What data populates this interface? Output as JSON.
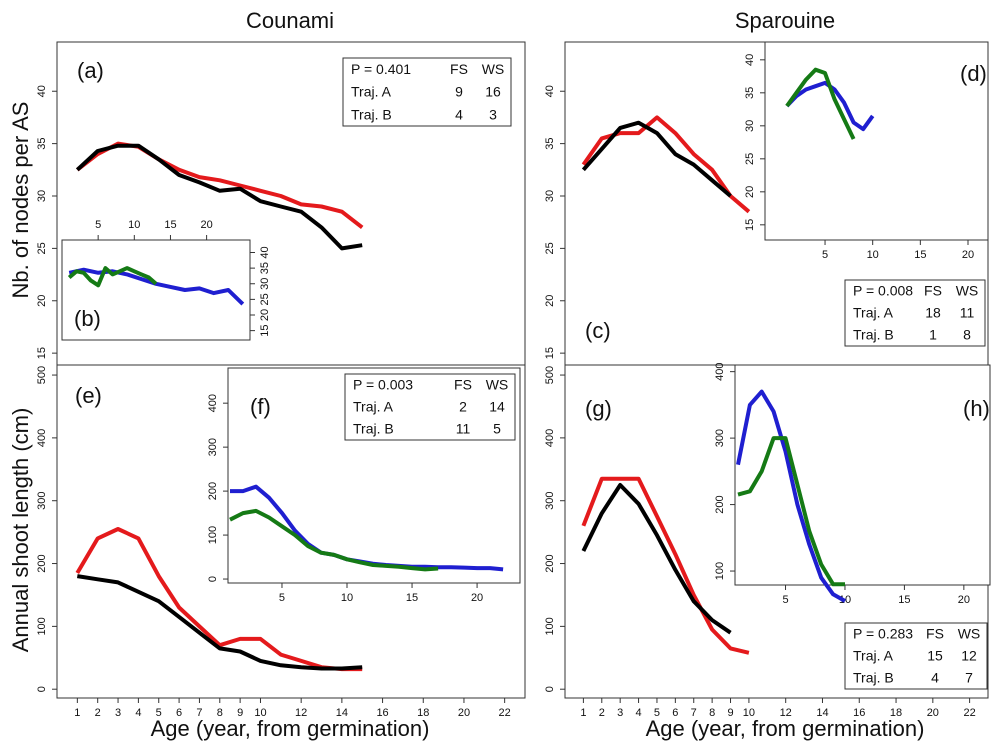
{
  "figure": {
    "columns": [
      "Counami",
      "Sparouine"
    ],
    "y_labels": [
      "Nb. of nodes per AS",
      "Annual shoot length (cm)"
    ],
    "x_label": "Age (year, from germination)"
  },
  "chart_data": [
    {
      "type": "line",
      "label": "(a)",
      "xlim": [
        0,
        23
      ],
      "ylim": [
        13.2,
        44.7
      ],
      "xticks": [
        1,
        2,
        3,
        4,
        5,
        6,
        7,
        8,
        9,
        10,
        12,
        14,
        16,
        18,
        20,
        22
      ],
      "yticks": [
        15,
        20,
        25,
        30,
        35,
        40
      ],
      "series": [
        {
          "color": "#e41a1c",
          "x": [
            1,
            2,
            3,
            4,
            5,
            6,
            7,
            8,
            9,
            10,
            11,
            12,
            13,
            14,
            15
          ],
          "values": [
            32.5,
            34,
            35,
            34.7,
            33.5,
            32.5,
            31.8,
            31.5,
            31,
            30.5,
            30,
            29.2,
            29,
            28.5,
            27
          ]
        },
        {
          "color": "#000000",
          "x": [
            1,
            2,
            3,
            4,
            5,
            6,
            7,
            8,
            9,
            10,
            11,
            12,
            13,
            14,
            15
          ],
          "values": [
            32.5,
            34.3,
            34.8,
            34.8,
            33.5,
            32,
            31.3,
            30.5,
            30.7,
            29.5,
            29,
            28.5,
            27,
            25,
            25.3
          ]
        }
      ],
      "table": {
        "p": "P = 0.401",
        "columns": [
          "FS",
          "WS"
        ],
        "rows": [
          {
            "name": "Traj. A",
            "counts": [
              9,
              16
            ]
          },
          {
            "name": "Traj. B",
            "counts": [
              4,
              3
            ]
          }
        ]
      }
    },
    {
      "type": "line",
      "label": "(b)",
      "xlim": [
        0,
        26
      ],
      "ylim": [
        12,
        44
      ],
      "xticks": [
        5,
        10,
        15,
        20
      ],
      "yticks": [
        15,
        20,
        25,
        30,
        35,
        40
      ],
      "x_axis": "top",
      "y_axis": "right",
      "series": [
        {
          "color": "#1f1fd0",
          "x": [
            1,
            3,
            5,
            7,
            9,
            11,
            13,
            15,
            17,
            19,
            21,
            23,
            25
          ],
          "values": [
            33.5,
            34.5,
            33.5,
            34,
            33,
            31.5,
            30,
            29,
            28,
            28.5,
            27,
            28,
            23.5
          ]
        },
        {
          "color": "#157a15",
          "x": [
            1,
            2,
            3,
            4,
            5,
            6,
            7,
            8,
            9,
            10,
            11,
            12,
            13
          ],
          "values": [
            32,
            34,
            33.5,
            31,
            29.5,
            35,
            33,
            34,
            35,
            34,
            33,
            32,
            30
          ]
        }
      ]
    },
    {
      "type": "line",
      "label": "(c)",
      "xlim": [
        0,
        23
      ],
      "ylim": [
        13.2,
        44.7
      ],
      "xticks": [
        1,
        2,
        3,
        4,
        5,
        6,
        7,
        8,
        9,
        10,
        12,
        14,
        16,
        18,
        20,
        22
      ],
      "yticks": [
        15,
        20,
        25,
        30,
        35,
        40
      ],
      "series": [
        {
          "color": "#e41a1c",
          "x": [
            1,
            2,
            3,
            4,
            5,
            6,
            7,
            8,
            9,
            10
          ],
          "values": [
            33,
            35.5,
            36,
            36,
            37.5,
            36,
            34,
            32.5,
            30,
            28.5
          ]
        },
        {
          "color": "#000000",
          "x": [
            1,
            2,
            3,
            4,
            5,
            6,
            7,
            8,
            9
          ],
          "values": [
            32.5,
            34.5,
            36.5,
            37,
            36,
            34,
            33,
            31.5,
            30
          ]
        }
      ],
      "table": {
        "p": "P = 0.008",
        "columns": [
          "FS",
          "WS"
        ],
        "rows": [
          {
            "name": "Traj. A",
            "counts": [
              18,
              11
            ]
          },
          {
            "name": "Traj. B",
            "counts": [
              1,
              8
            ]
          }
        ]
      }
    },
    {
      "type": "line",
      "label": "(d)",
      "xlim": [
        -1.3,
        22.1
      ],
      "ylim": [
        12.7,
        42.7
      ],
      "xticks": [
        5,
        10,
        15,
        20
      ],
      "yticks": [
        15,
        20,
        25,
        30,
        35,
        40
      ],
      "series": [
        {
          "color": "#1f1fd0",
          "x": [
            1,
            2,
            3,
            4,
            5,
            6,
            7,
            8,
            9,
            10
          ],
          "values": [
            33,
            34.5,
            35.5,
            36,
            36.5,
            35.5,
            33.5,
            30.5,
            29.5,
            31.5
          ]
        },
        {
          "color": "#157a15",
          "x": [
            1,
            2,
            3,
            4,
            5,
            6,
            7,
            8
          ],
          "values": [
            33,
            35,
            37,
            38.5,
            38,
            34,
            31,
            28
          ]
        }
      ]
    },
    {
      "type": "line",
      "label": "(e)",
      "xlim": [
        0,
        23
      ],
      "ylim": [
        -14,
        516
      ],
      "xticks": [
        1,
        2,
        3,
        4,
        5,
        6,
        7,
        8,
        9,
        10,
        12,
        14,
        16,
        18,
        20,
        22
      ],
      "yticks": [
        0,
        100,
        200,
        300,
        400,
        500
      ],
      "series": [
        {
          "color": "#e41a1c",
          "x": [
            1,
            2,
            3,
            4,
            5,
            6,
            7,
            8,
            9,
            10,
            11,
            12,
            13,
            14,
            15
          ],
          "values": [
            185,
            240,
            255,
            240,
            180,
            130,
            100,
            70,
            80,
            80,
            55,
            45,
            35,
            32,
            32
          ]
        },
        {
          "color": "#000000",
          "x": [
            1,
            2,
            3,
            4,
            5,
            6,
            7,
            8,
            9,
            10,
            11,
            12,
            13,
            14,
            15
          ],
          "values": [
            180,
            175,
            170,
            155,
            140,
            115,
            90,
            65,
            60,
            45,
            38,
            35,
            33,
            33,
            35
          ]
        }
      ],
      "table": {
        "p": "P = 0.003",
        "columns": [
          "FS",
          "WS"
        ],
        "rows": [
          {
            "name": "Traj. A",
            "counts": [
              2,
              14
            ]
          },
          {
            "name": "Traj. B",
            "counts": [
              11,
              5
            ]
          }
        ]
      }
    },
    {
      "type": "line",
      "label": "(f)",
      "xlim": [
        0.85,
        23.3
      ],
      "ylim": [
        -9,
        480
      ],
      "xticks": [
        5,
        10,
        15,
        20
      ],
      "yticks": [
        0,
        100,
        200,
        300,
        400
      ],
      "series": [
        {
          "color": "#1f1fd0",
          "x": [
            1,
            2,
            3,
            4,
            5,
            6,
            7,
            8,
            9,
            10,
            11,
            12,
            13,
            14,
            15,
            16,
            17,
            18,
            19,
            20,
            21,
            22
          ],
          "values": [
            200,
            200,
            210,
            185,
            150,
            110,
            80,
            60,
            55,
            45,
            40,
            35,
            32,
            30,
            28,
            28,
            27,
            27,
            26,
            25,
            25,
            22
          ]
        },
        {
          "color": "#157a15",
          "x": [
            1,
            2,
            3,
            4,
            5,
            6,
            7,
            8,
            9,
            10,
            11,
            12,
            13,
            14,
            15,
            16,
            17
          ],
          "values": [
            135,
            150,
            155,
            140,
            120,
            100,
            75,
            60,
            55,
            45,
            38,
            32,
            30,
            28,
            25,
            22,
            24
          ]
        }
      ]
    },
    {
      "type": "line",
      "label": "(g)",
      "xlim": [
        0,
        23
      ],
      "ylim": [
        -14,
        516
      ],
      "xticks": [
        1,
        2,
        3,
        4,
        5,
        6,
        7,
        8,
        9,
        10,
        12,
        14,
        16,
        18,
        20,
        22
      ],
      "yticks": [
        0,
        100,
        200,
        300,
        400,
        500
      ],
      "series": [
        {
          "color": "#e41a1c",
          "x": [
            1,
            2,
            3,
            4,
            5,
            6,
            7,
            8,
            9,
            10
          ],
          "values": [
            260,
            335,
            335,
            335,
            275,
            215,
            150,
            95,
            65,
            58
          ]
        },
        {
          "color": "#000000",
          "x": [
            1,
            2,
            3,
            4,
            5,
            6,
            7,
            8,
            9
          ],
          "values": [
            220,
            280,
            325,
            295,
            245,
            190,
            140,
            110,
            90
          ]
        }
      ],
      "table": {
        "p": "P = 0.283",
        "columns": [
          "FS",
          "WS"
        ],
        "rows": [
          {
            "name": "Traj. A",
            "counts": [
              15,
              12
            ]
          },
          {
            "name": "Traj. B",
            "counts": [
              4,
              7
            ]
          }
        ]
      }
    },
    {
      "type": "line",
      "label": "(h)",
      "xlim": [
        0.75,
        22.2
      ],
      "ylim": [
        79,
        410
      ],
      "xticks": [
        5,
        10,
        15,
        20
      ],
      "yticks": [
        100,
        200,
        300,
        400
      ],
      "series": [
        {
          "color": "#1f1fd0",
          "x": [
            1,
            2,
            3,
            4,
            5,
            6,
            7,
            8,
            9,
            10
          ],
          "values": [
            260,
            350,
            370,
            340,
            280,
            200,
            140,
            90,
            65,
            55
          ]
        },
        {
          "color": "#157a15",
          "x": [
            1,
            2,
            3,
            4,
            5,
            6,
            7,
            8,
            9,
            10
          ],
          "values": [
            215,
            220,
            250,
            300,
            300,
            230,
            160,
            110,
            80,
            80
          ]
        }
      ]
    }
  ]
}
